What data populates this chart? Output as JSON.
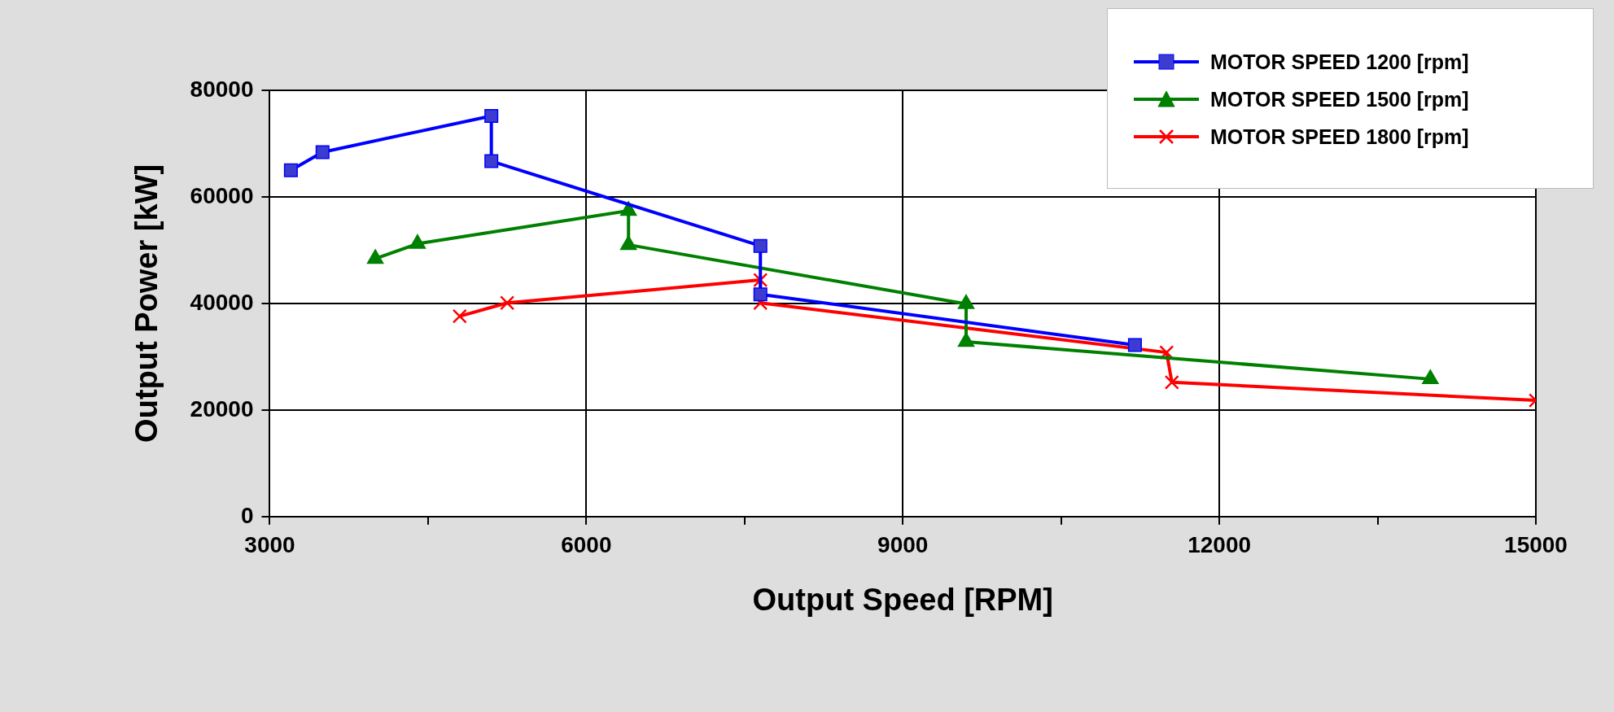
{
  "chart_data": {
    "type": "line",
    "xlabel": "Output Speed [RPM]",
    "ylabel": "Output Power [kW]",
    "xlim": [
      3000,
      15000
    ],
    "xticks": [
      3000,
      {
        "value": 4500,
        "label": null
      },
      6000,
      {
        "value": 7500,
        "label": null
      },
      9000,
      {
        "value": 10500,
        "label": null
      },
      12000,
      {
        "value": 13500,
        "label": null
      },
      15000
    ],
    "ylim": [
      0,
      80000
    ],
    "yticks": [
      0,
      20000,
      40000,
      60000,
      80000
    ],
    "grid": true,
    "legend": "top right",
    "line_style": "solid",
    "series": [
      {
        "name": "MOTOR SPEED 1200 [rpm]",
        "color": "#0000ff",
        "marker": "square",
        "x": [
          3200,
          3500,
          5100,
          5100,
          7650,
          7650,
          11200
        ],
        "values": [
          65000,
          68400,
          75200,
          66700,
          50800,
          41700,
          32200
        ]
      },
      {
        "name": "MOTOR SPEED 1500 [rpm]",
        "color": "#008000",
        "marker": "triangle",
        "x": [
          4000,
          4400,
          6400,
          6400,
          9600,
          9600,
          14000
        ],
        "values": [
          48400,
          51200,
          57400,
          51000,
          39900,
          32800,
          25800
        ]
      },
      {
        "name": "MOTOR SPEED 1800 [rpm]",
        "color": "#ff0000",
        "marker": "cross",
        "x": [
          4800,
          5250,
          7650,
          7650,
          11500,
          11550,
          15000
        ],
        "values": [
          37600,
          40100,
          44400,
          40100,
          30800,
          25200,
          21800
        ]
      }
    ]
  }
}
